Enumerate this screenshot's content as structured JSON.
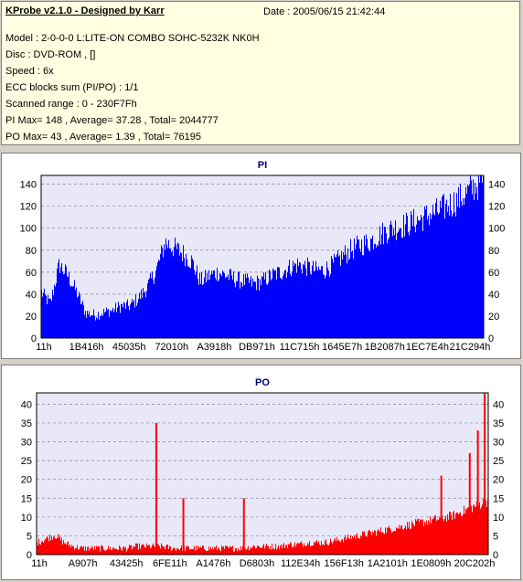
{
  "header": {
    "app_title": "KProbe v2.1.0 - Designed by Karr",
    "date": "Date : 2005/06/15 21:42:44",
    "lines": [
      "Model : 2-0-0-0 L:LITE-ON COMBO SOHC-5232K NK0H",
      "Disc : DVD-ROM ,  []",
      "Speed : 6x",
      "ECC blocks sum (PI/PO) : 1/1",
      "Scanned range : 0 - 230F7Fh",
      "PI Max= 148 , Average= 37.28 , Total= 2044777",
      "PO Max= 43 , Average= 1.39 , Total= 76195"
    ]
  },
  "colors": {
    "pi": "#0000ff",
    "po": "#ff0000",
    "plot_bg": "#e8e8f8",
    "title": "#000080"
  },
  "chart_data": [
    {
      "type": "area",
      "title": "PI",
      "ylim": [
        0,
        148
      ],
      "yticks": [
        0,
        20,
        40,
        60,
        80,
        100,
        120,
        140
      ],
      "xtick_labels": [
        "11h",
        "1B416h",
        "45035h",
        "72010h",
        "A3918h",
        "DB971h",
        "11C715h",
        "1645E7h",
        "1B2087h",
        "1EC7E4h",
        "21C294h"
      ],
      "grid": true,
      "x_profile": [
        0,
        0.02,
        0.04,
        0.06,
        0.08,
        0.1,
        0.12,
        0.14,
        0.16,
        0.18,
        0.2,
        0.22,
        0.24,
        0.26,
        0.28,
        0.3,
        0.32,
        0.34,
        0.36,
        0.38,
        0.4,
        0.42,
        0.44,
        0.46,
        0.48,
        0.5,
        0.52,
        0.54,
        0.56,
        0.58,
        0.6,
        0.62,
        0.64,
        0.66,
        0.68,
        0.7,
        0.72,
        0.74,
        0.76,
        0.78,
        0.8,
        0.82,
        0.84,
        0.86,
        0.88,
        0.9,
        0.92,
        0.94,
        0.96,
        0.98,
        1.0
      ],
      "y_profile": [
        40,
        30,
        65,
        55,
        40,
        22,
        20,
        22,
        24,
        28,
        28,
        35,
        45,
        60,
        85,
        80,
        75,
        68,
        50,
        55,
        58,
        55,
        52,
        50,
        48,
        50,
        55,
        58,
        62,
        65,
        63,
        60,
        60,
        65,
        72,
        78,
        82,
        85,
        90,
        95,
        98,
        100,
        103,
        106,
        110,
        113,
        118,
        122,
        128,
        135,
        140
      ]
    },
    {
      "type": "area",
      "title": "PO",
      "ylim": [
        0,
        43
      ],
      "yticks": [
        0,
        5,
        10,
        15,
        20,
        25,
        30,
        35,
        40
      ],
      "xtick_labels": [
        "11h",
        "A907h",
        "43425h",
        "6FE11h",
        "A1476h",
        "D6803h",
        "112E34h",
        "156F13h",
        "1A2101h",
        "1E0809h",
        "20C202h"
      ],
      "grid": true,
      "x_profile": [
        0,
        0.02,
        0.04,
        0.06,
        0.08,
        0.1,
        0.12,
        0.14,
        0.16,
        0.18,
        0.2,
        0.22,
        0.24,
        0.26,
        0.28,
        0.3,
        0.32,
        0.34,
        0.36,
        0.38,
        0.4,
        0.42,
        0.44,
        0.46,
        0.48,
        0.5,
        0.52,
        0.54,
        0.56,
        0.58,
        0.6,
        0.62,
        0.64,
        0.66,
        0.68,
        0.7,
        0.72,
        0.74,
        0.76,
        0.78,
        0.8,
        0.82,
        0.84,
        0.86,
        0.88,
        0.9,
        0.92,
        0.94,
        0.96,
        0.98,
        1.0
      ],
      "y_profile": [
        3,
        4,
        5,
        3,
        2,
        1.5,
        1.5,
        1.5,
        1.5,
        1.5,
        1.5,
        2,
        2,
        2,
        2,
        1.5,
        1.5,
        1.5,
        1.5,
        1.5,
        1.5,
        1.5,
        1.5,
        1.5,
        2,
        2,
        2,
        2,
        2.5,
        2.5,
        3,
        3,
        3,
        3.5,
        4,
        4.5,
        5,
        5.5,
        6,
        6.5,
        7,
        7.5,
        8,
        8.5,
        9,
        9.5,
        10,
        11,
        12,
        13,
        14
      ],
      "spikes": [
        [
          0.263,
          35
        ],
        [
          0.323,
          15
        ],
        [
          0.457,
          15
        ],
        [
          0.894,
          21
        ],
        [
          0.957,
          27
        ],
        [
          0.99,
          43
        ],
        [
          0.975,
          33
        ]
      ]
    }
  ]
}
